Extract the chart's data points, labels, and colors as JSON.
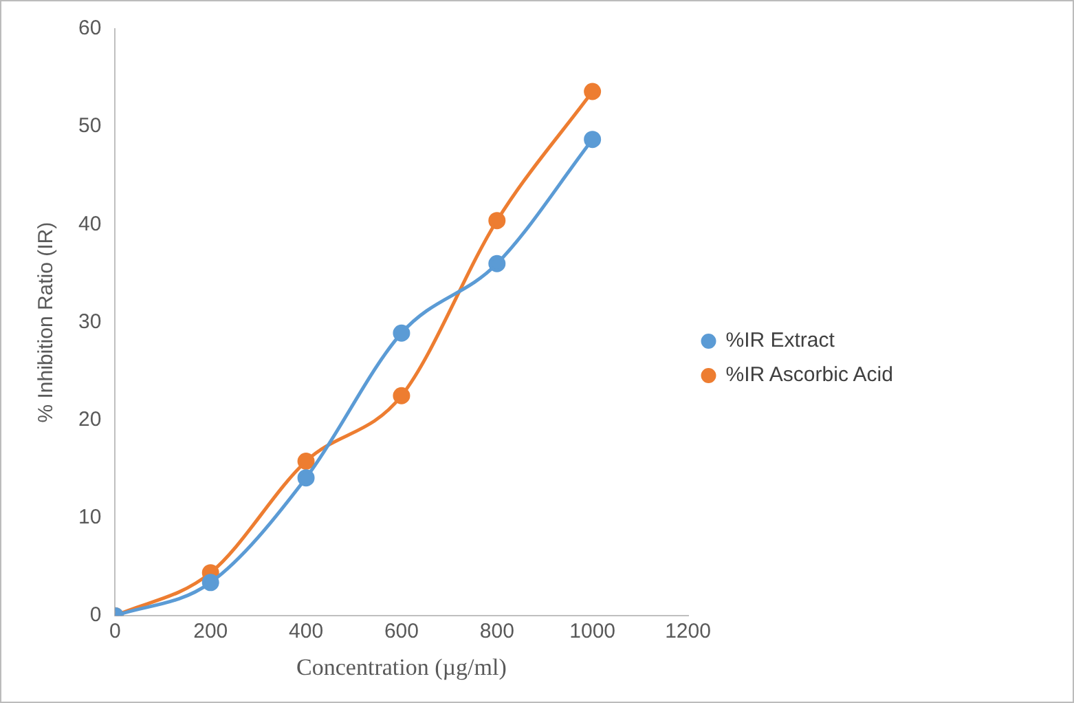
{
  "chart_data": {
    "type": "line",
    "xlabel": "Concentration (µg/ml)",
    "ylabel": "% Inhibition Ratio (IR)",
    "x": [
      0,
      200,
      400,
      600,
      800,
      1000
    ],
    "series": [
      {
        "name": "%IR Extract",
        "color": "#5b9bd5",
        "values": [
          0,
          3.4,
          14.1,
          28.9,
          36.0,
          48.7
        ]
      },
      {
        "name": "%IR Ascorbic Acid",
        "color": "#ed7d31",
        "values": [
          0,
          4.4,
          15.8,
          22.5,
          40.4,
          53.6
        ]
      }
    ],
    "xlim": [
      0,
      1200
    ],
    "xticks": [
      0,
      200,
      400,
      600,
      800,
      1000,
      1200
    ],
    "ylim": [
      0,
      60
    ],
    "yticks": [
      0,
      10,
      20,
      30,
      40,
      50,
      60
    ],
    "grid": false,
    "legend": "right",
    "marker": "circle",
    "line_style": "solid"
  }
}
